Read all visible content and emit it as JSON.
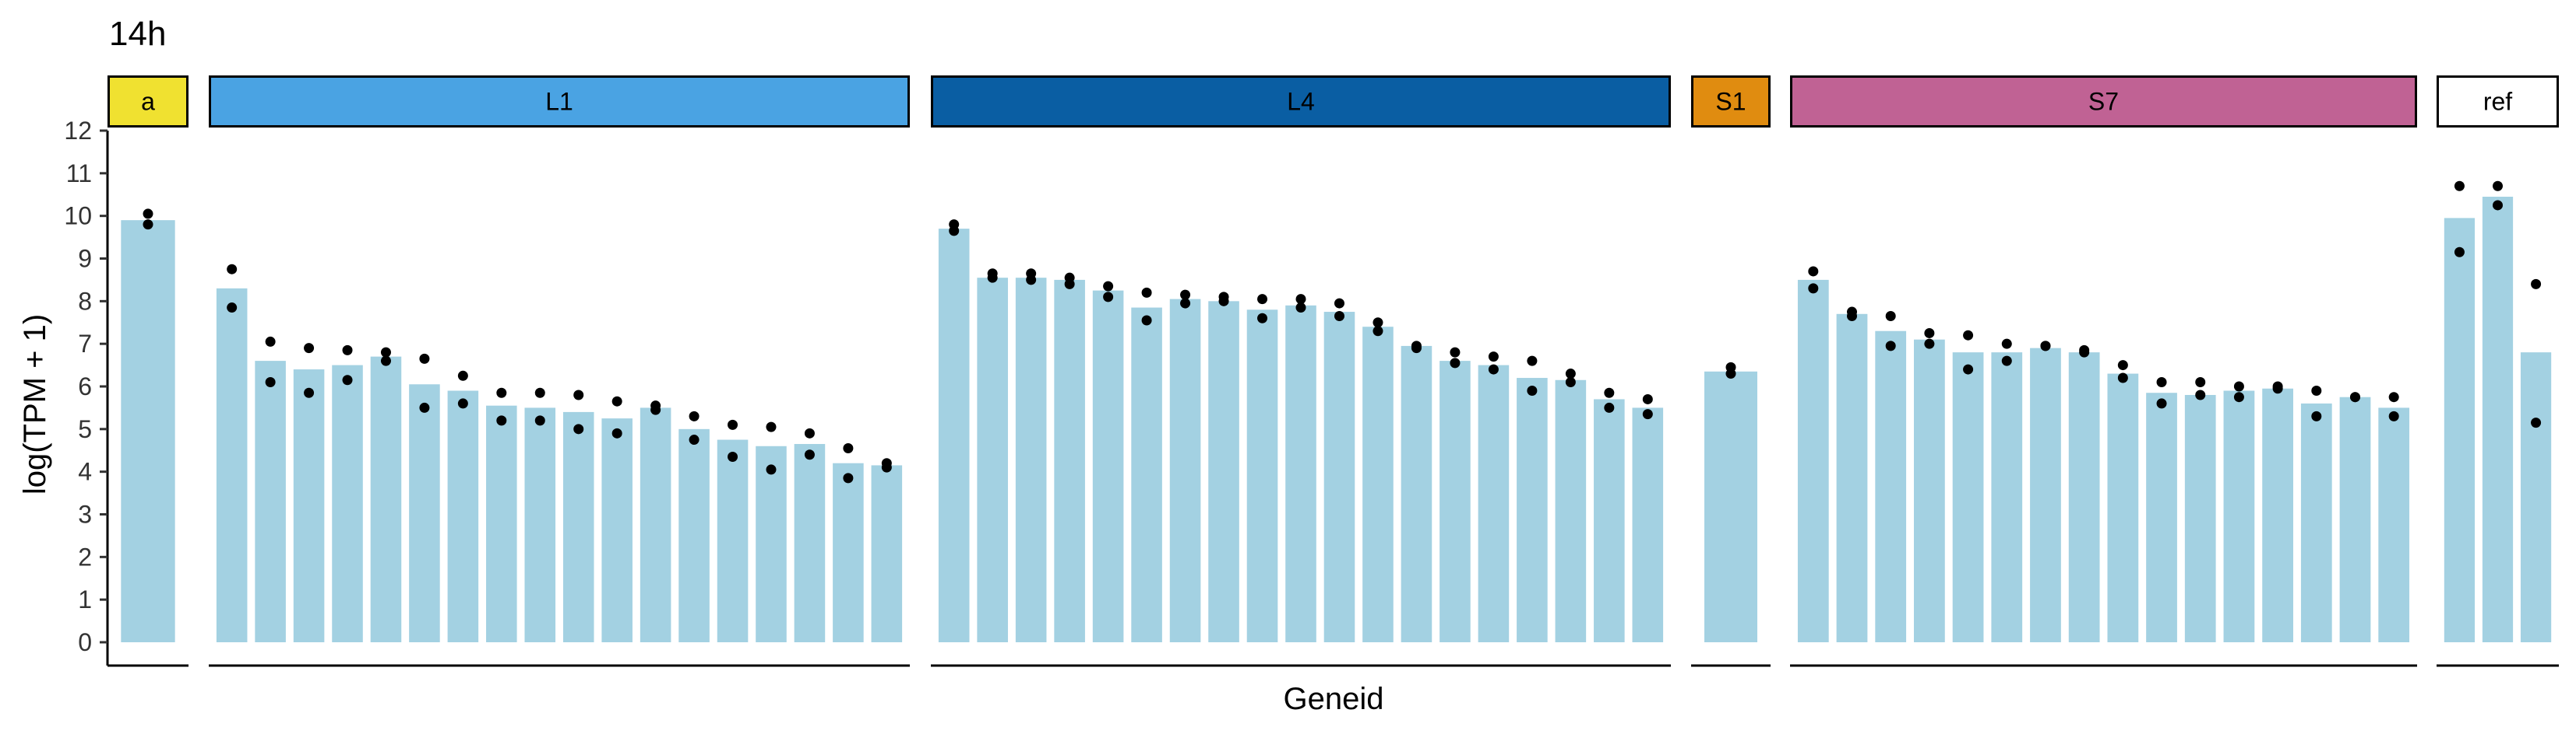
{
  "chart_data": {
    "type": "bar",
    "title": "14h",
    "xlabel": "Geneid",
    "ylabel": "log(TPM + 1)",
    "ylim": [
      0,
      12
    ],
    "yticks": [
      "0",
      "1",
      "2",
      "3",
      "4",
      "5",
      "6",
      "7",
      "8",
      "9",
      "10",
      "11",
      "12"
    ],
    "grid": false,
    "facets": [
      {
        "label": "a",
        "fill": "#f0e130",
        "text_color": "#000000",
        "values": [
          9.9
        ],
        "points": [
          [
            10.05,
            9.8
          ]
        ]
      },
      {
        "label": "L1",
        "fill": "#4aa3e3",
        "text_color": "#000000",
        "values": [
          8.3,
          6.6,
          6.4,
          6.5,
          6.7,
          6.05,
          5.9,
          5.55,
          5.5,
          5.4,
          5.25,
          5.5,
          5.0,
          4.75,
          4.6,
          4.65,
          4.2,
          4.15
        ],
        "points": [
          [
            8.75,
            7.85
          ],
          [
            7.05,
            6.1
          ],
          [
            6.9,
            5.85
          ],
          [
            6.85,
            6.15
          ],
          [
            6.8,
            6.6
          ],
          [
            6.65,
            5.5
          ],
          [
            6.25,
            5.6
          ],
          [
            5.85,
            5.2
          ],
          [
            5.85,
            5.2
          ],
          [
            5.8,
            5.0
          ],
          [
            5.65,
            4.9
          ],
          [
            5.55,
            5.45
          ],
          [
            5.3,
            4.75
          ],
          [
            5.1,
            4.35
          ],
          [
            5.05,
            4.05
          ],
          [
            4.9,
            4.4
          ],
          [
            4.55,
            3.85
          ],
          [
            4.2,
            4.1
          ]
        ]
      },
      {
        "label": "L4",
        "fill": "#0a5ea3",
        "text_color": "#000000",
        "values": [
          9.7,
          8.55,
          8.55,
          8.5,
          8.25,
          7.85,
          8.05,
          8.0,
          7.8,
          7.9,
          7.75,
          7.4,
          6.95,
          6.6,
          6.5,
          6.2,
          6.15,
          5.7,
          5.5
        ],
        "points": [
          [
            9.8,
            9.65
          ],
          [
            8.65,
            8.55
          ],
          [
            8.65,
            8.5
          ],
          [
            8.55,
            8.4
          ],
          [
            8.35,
            8.1
          ],
          [
            8.2,
            7.55
          ],
          [
            8.15,
            7.95
          ],
          [
            8.1,
            8.0
          ],
          [
            8.05,
            7.6
          ],
          [
            8.05,
            7.85
          ],
          [
            7.95,
            7.65
          ],
          [
            7.5,
            7.3
          ],
          [
            6.95,
            6.9
          ],
          [
            6.8,
            6.55
          ],
          [
            6.7,
            6.4
          ],
          [
            6.6,
            5.9
          ],
          [
            6.3,
            6.1
          ],
          [
            5.85,
            5.5
          ],
          [
            5.7,
            5.35
          ]
        ]
      },
      {
        "label": "S1",
        "fill": "#e08c10",
        "text_color": "#000000",
        "values": [
          6.35
        ],
        "points": [
          [
            6.45,
            6.3
          ]
        ]
      },
      {
        "label": "S7",
        "fill": "#c06294",
        "text_color": "#000000",
        "values": [
          8.5,
          7.7,
          7.3,
          7.1,
          6.8,
          6.8,
          6.9,
          6.8,
          6.3,
          5.85,
          5.8,
          5.9,
          5.95,
          5.6,
          5.75,
          5.5
        ],
        "points": [
          [
            8.7,
            8.3
          ],
          [
            7.75,
            7.65
          ],
          [
            7.65,
            6.95
          ],
          [
            7.25,
            7.0
          ],
          [
            7.2,
            6.4
          ],
          [
            7.0,
            6.6
          ],
          [
            6.95,
            6.95
          ],
          [
            6.85,
            6.8
          ],
          [
            6.5,
            6.2
          ],
          [
            6.1,
            5.6
          ],
          [
            6.1,
            5.8
          ],
          [
            6.0,
            5.75
          ],
          [
            6.0,
            5.95
          ],
          [
            5.9,
            5.3
          ],
          [
            5.75,
            5.75
          ],
          [
            5.75,
            5.3
          ]
        ]
      },
      {
        "label": "ref",
        "fill": "#ffffff",
        "text_color": "#000000",
        "values": [
          9.95,
          10.45,
          6.8
        ],
        "points": [
          [
            10.7,
            9.15
          ],
          [
            10.7,
            10.25
          ],
          [
            8.4,
            5.15
          ]
        ]
      }
    ]
  }
}
